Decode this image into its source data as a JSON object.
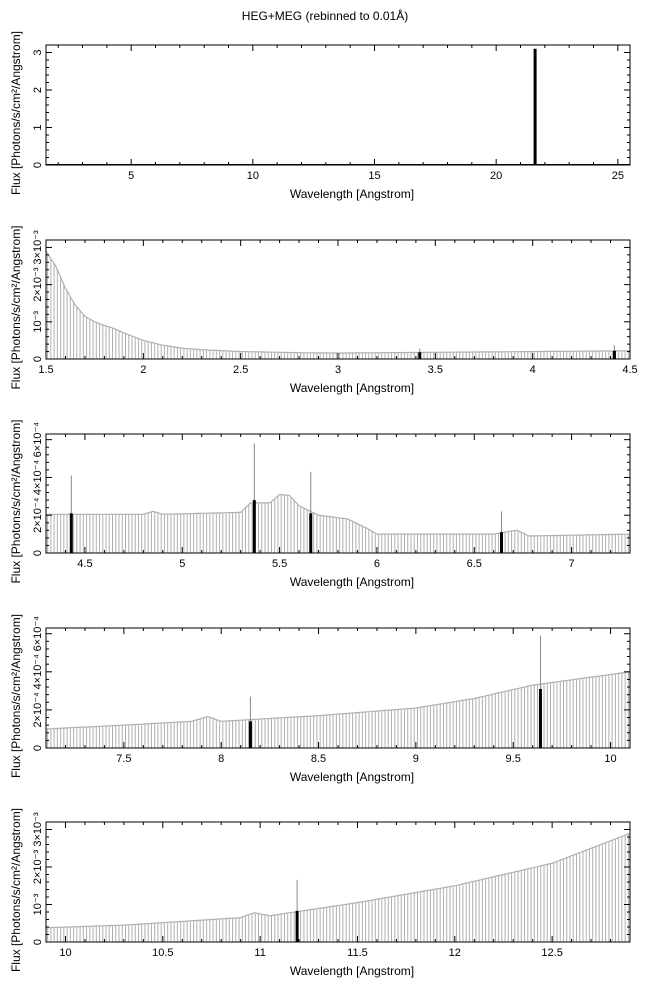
{
  "title": "HEG+MEG (rebinned to 0.01Å)",
  "chart_data": [
    {
      "type": "bar",
      "xlabel": "Wavelength [Angstrom]",
      "ylabel": "Flux [Photons/s/cm²/Angstrom]",
      "xlim": [
        1.5,
        25.5
      ],
      "ylim": [
        0,
        3.2
      ],
      "xticks": [
        5,
        10,
        15,
        20,
        25
      ],
      "xtick_labels": [
        "5",
        "10",
        "15",
        "20",
        "25"
      ],
      "yticks": [
        0,
        1,
        2,
        3
      ],
      "ytick_labels": [
        "0",
        "1",
        "2",
        "3"
      ],
      "continuum": [
        [
          1.5,
          0.01
        ],
        [
          25.5,
          0.01
        ]
      ],
      "continuum_color": "#000000",
      "lines": [
        {
          "x": 21.6,
          "y": 3.1,
          "err": 0
        }
      ]
    },
    {
      "type": "bar",
      "xlabel": "Wavelength [Angstrom]",
      "ylabel": "Flux [Photons/s/cm²/Angstrom]",
      "xlim": [
        1.5,
        4.5
      ],
      "ylim": [
        0,
        0.0032
      ],
      "xticks": [
        1.5,
        2,
        2.5,
        3,
        3.5,
        4,
        4.5
      ],
      "xtick_labels": [
        "1.5",
        "2",
        "2.5",
        "3",
        "3.5",
        "4",
        "4.5"
      ],
      "yticks": [
        0,
        0.001,
        0.002,
        0.003
      ],
      "ytick_labels": [
        "0",
        "10⁻³",
        "2×10⁻³",
        "3×10⁻³"
      ],
      "continuum": [
        [
          1.5,
          0.0029
        ],
        [
          1.55,
          0.0025
        ],
        [
          1.6,
          0.0019
        ],
        [
          1.65,
          0.00145
        ],
        [
          1.7,
          0.00115
        ],
        [
          1.75,
          0.001
        ],
        [
          1.8,
          0.0009
        ],
        [
          1.85,
          0.00082
        ],
        [
          1.9,
          0.0007
        ],
        [
          2.0,
          0.0005
        ],
        [
          2.1,
          0.00037
        ],
        [
          2.2,
          0.00029
        ],
        [
          2.3,
          0.00025
        ],
        [
          2.5,
          0.0002
        ],
        [
          2.8,
          0.00017
        ],
        [
          3.0,
          0.00016
        ],
        [
          3.5,
          0.00018
        ],
        [
          4.0,
          0.0002
        ],
        [
          4.5,
          0.00022
        ]
      ],
      "continuum_color": "#b0b0b0",
      "lines": [
        {
          "x": 3.42,
          "y": 0.00018,
          "err": 0.0001
        },
        {
          "x": 4.42,
          "y": 0.00022,
          "err": 0.00015
        }
      ]
    },
    {
      "type": "bar",
      "xlabel": "Wavelength [Angstrom]",
      "ylabel": "Flux [Photons/s/cm²/Angstrom]",
      "xlim": [
        4.3,
        7.3
      ],
      "ylim": [
        0,
        0.00063
      ],
      "xticks": [
        4.5,
        5,
        5.5,
        6,
        6.5,
        7
      ],
      "xtick_labels": [
        "4.5",
        "5",
        "5.5",
        "6",
        "6.5",
        "7"
      ],
      "yticks": [
        0,
        0.0002,
        0.0004,
        0.0006
      ],
      "ytick_labels": [
        "0",
        "2×10⁻⁴",
        "4×10⁻⁴",
        "6×10⁻⁴"
      ],
      "continuum": [
        [
          4.3,
          0.000205
        ],
        [
          4.8,
          0.000205
        ],
        [
          4.85,
          0.00022
        ],
        [
          4.9,
          0.000205
        ],
        [
          5.3,
          0.000215
        ],
        [
          5.35,
          0.000265
        ],
        [
          5.45,
          0.000265
        ],
        [
          5.5,
          0.00031
        ],
        [
          5.55,
          0.000305
        ],
        [
          5.6,
          0.00025
        ],
        [
          5.7,
          0.0002
        ],
        [
          5.85,
          0.00018
        ],
        [
          5.95,
          0.00013
        ],
        [
          6.0,
          0.0001
        ],
        [
          6.6,
          0.0001
        ],
        [
          6.65,
          0.00011
        ],
        [
          6.72,
          0.00012
        ],
        [
          6.78,
          9e-05
        ],
        [
          7.3,
          0.0001
        ]
      ],
      "continuum_color": "#b0b0b0",
      "lines": [
        {
          "x": 4.43,
          "y": 0.00021,
          "err": 0.0002
        },
        {
          "x": 5.37,
          "y": 0.00028,
          "err": 0.0003
        },
        {
          "x": 5.66,
          "y": 0.00021,
          "err": 0.00022
        },
        {
          "x": 6.64,
          "y": 0.00011,
          "err": 0.00011
        }
      ]
    },
    {
      "type": "bar",
      "xlabel": "Wavelength [Angstrom]",
      "ylabel": "Flux [Photons/s/cm²/Angstrom]",
      "xlim": [
        7.1,
        10.1
      ],
      "ylim": [
        0,
        0.00063
      ],
      "xticks": [
        7.5,
        8,
        8.5,
        9,
        9.5,
        10
      ],
      "xtick_labels": [
        "7.5",
        "8",
        "8.5",
        "9",
        "9.5",
        "10"
      ],
      "yticks": [
        0,
        0.0002,
        0.0004,
        0.0006
      ],
      "ytick_labels": [
        "0",
        "2×10⁻⁴",
        "4×10⁻⁴",
        "6×10⁻⁴"
      ],
      "continuum": [
        [
          7.1,
          0.0001
        ],
        [
          7.5,
          0.00012
        ],
        [
          7.85,
          0.00014
        ],
        [
          7.93,
          0.000165
        ],
        [
          8.0,
          0.00014
        ],
        [
          8.5,
          0.00017
        ],
        [
          9.0,
          0.00021
        ],
        [
          9.3,
          0.00026
        ],
        [
          9.6,
          0.00033
        ],
        [
          10.1,
          0.0004
        ]
      ],
      "continuum_color": "#b0b0b0",
      "lines": [
        {
          "x": 8.15,
          "y": 0.00014,
          "err": 0.00013
        },
        {
          "x": 9.64,
          "y": 0.00031,
          "err": 0.00028
        }
      ]
    },
    {
      "type": "bar",
      "xlabel": "Wavelength [Angstrom]",
      "ylabel": "Flux [Photons/s/cm²/Angstrom]",
      "xlim": [
        9.9,
        12.9
      ],
      "ylim": [
        0,
        0.0032
      ],
      "xticks": [
        10,
        10.5,
        11,
        11.5,
        12,
        12.5
      ],
      "xtick_labels": [
        "10",
        "10.5",
        "11",
        "11.5",
        "12",
        "12.5"
      ],
      "yticks": [
        0,
        0.001,
        0.002,
        0.003
      ],
      "ytick_labels": [
        "0",
        "10⁻³",
        "2×10⁻³",
        "3×10⁻³"
      ],
      "continuum": [
        [
          9.9,
          0.00038
        ],
        [
          10.3,
          0.00045
        ],
        [
          10.9,
          0.00065
        ],
        [
          10.97,
          0.00078
        ],
        [
          11.05,
          0.0007
        ],
        [
          11.5,
          0.00105
        ],
        [
          12.0,
          0.0015
        ],
        [
          12.5,
          0.0021
        ],
        [
          12.9,
          0.0029
        ]
      ],
      "continuum_color": "#b0b0b0",
      "lines": [
        {
          "x": 11.19,
          "y": 0.00083,
          "err": 0.00083
        }
      ]
    }
  ]
}
